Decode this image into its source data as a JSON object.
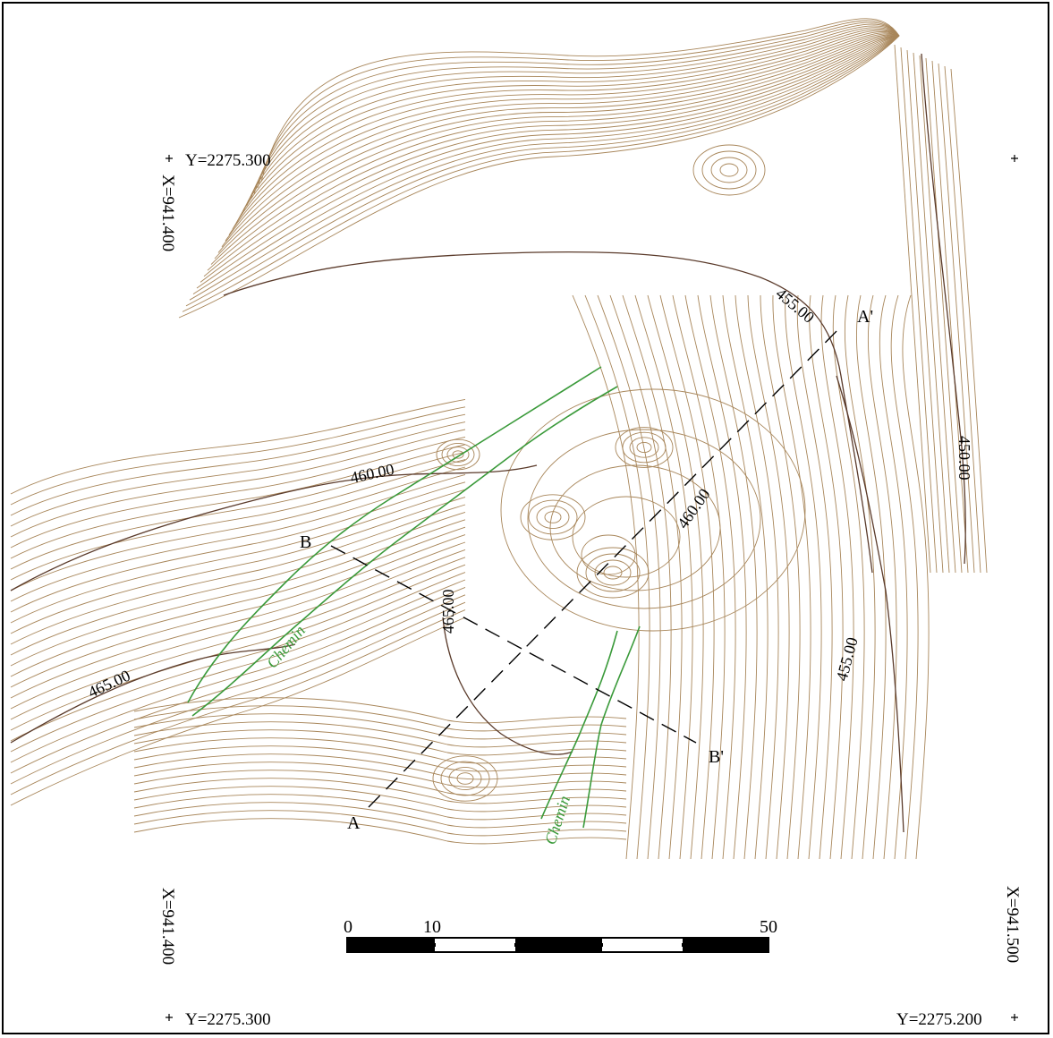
{
  "map": {
    "coords": {
      "top_left_y": "Y=2275.300",
      "top_left_x": "X=941.400",
      "bottom_left_x": "X=941.400",
      "bottom_left_y": "Y=2275.300",
      "bottom_right_x": "X=941.500",
      "bottom_right_y": "Y=2275.200"
    },
    "contour_labels": {
      "c455_top": "455.00",
      "c450": "450.00",
      "c460_left": "460.00",
      "c460_right": "460.00",
      "c465_left": "465.00",
      "c465_center": "465.00",
      "c455_right": "455.00"
    },
    "sections": {
      "a": "A",
      "a_prime": "A'",
      "b": "B",
      "b_prime": "B'"
    },
    "paths": {
      "chemin_1": "Chemin",
      "chemin_2": "Chemin"
    },
    "scale": {
      "tick_0": "0",
      "tick_10": "10",
      "tick_50": "50"
    },
    "colors": {
      "contour": "#a8865a",
      "contour_dark": "#5a3a2a",
      "path": "#3a9a3a"
    }
  }
}
